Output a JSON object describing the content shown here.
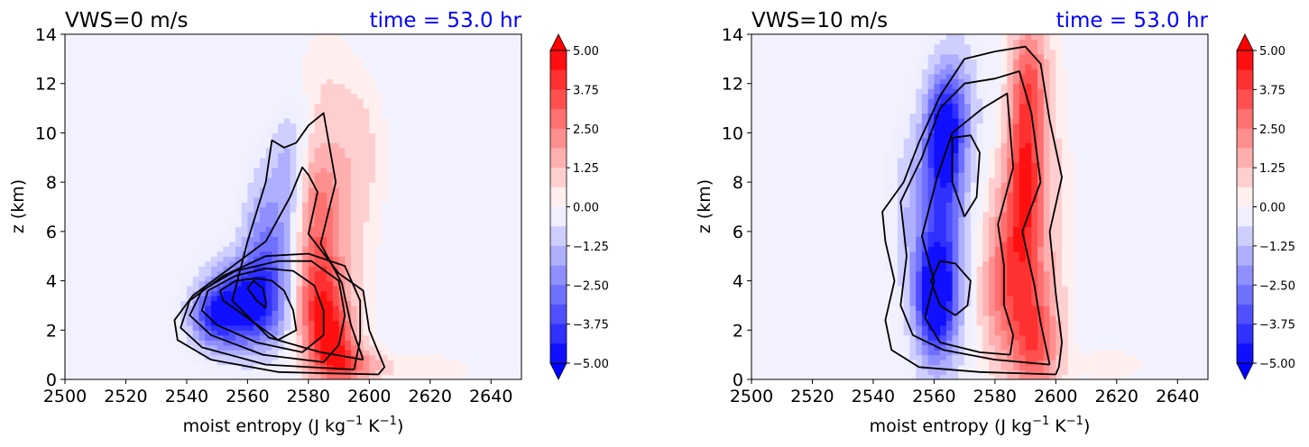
{
  "colors": {
    "positive": "#ff0000",
    "negative": "#0000ff",
    "background": "#f2f2ff",
    "time_title": "#0000ff",
    "contour": "#000000"
  },
  "colorbar": {
    "min": -5.0,
    "max": 5.0,
    "tick_labels": [
      "5.00",
      "3.75",
      "2.50",
      "1.25",
      "0.00",
      "−1.25",
      "−2.50",
      "−3.75",
      "−5.00"
    ],
    "tick_values": [
      5.0,
      3.75,
      2.5,
      1.25,
      0.0,
      -1.25,
      -2.5,
      -3.75,
      -5.0
    ]
  },
  "chart_data": [
    {
      "type": "heatmap",
      "title_left": "VWS=0 m/s",
      "title_right": "time = 53.0 hr",
      "xlabel_main": "moist entropy (J kg",
      "xlabel_sup1": "−1",
      "xlabel_mid": " K",
      "xlabel_sup2": "−1",
      "xlabel_end": ")",
      "ylabel": "z (km)",
      "xlim": [
        2500,
        2650
      ],
      "ylim": [
        0,
        14
      ],
      "x_ticks": [
        "2500",
        "2520",
        "2540",
        "2560",
        "2580",
        "2600",
        "2620",
        "2640"
      ],
      "y_ticks": [
        "0",
        "2",
        "4",
        "6",
        "8",
        "10",
        "12",
        "14"
      ],
      "blobs": [
        {
          "x": 2575,
          "y": 3.8,
          "sx": 9,
          "sy": 1.8,
          "v": -1.2
        },
        {
          "x": 2558,
          "y": 3.0,
          "sx": 8,
          "sy": 1.2,
          "v": -4.8
        },
        {
          "x": 2548,
          "y": 2.5,
          "sx": 5,
          "sy": 0.8,
          "v": -2.5
        },
        {
          "x": 2566,
          "y": 5.5,
          "sx": 5,
          "sy": 2.0,
          "v": -2.2
        },
        {
          "x": 2574,
          "y": 8.5,
          "sx": 4,
          "sy": 1.6,
          "v": -1.6
        },
        {
          "x": 2583,
          "y": 3.2,
          "sx": 6,
          "sy": 1.6,
          "v": 4.0
        },
        {
          "x": 2588,
          "y": 1.5,
          "sx": 5,
          "sy": 1.0,
          "v": 3.2
        },
        {
          "x": 2594,
          "y": 0.6,
          "sx": 7,
          "sy": 0.5,
          "v": 2.5
        },
        {
          "x": 2583,
          "y": 6.8,
          "sx": 5,
          "sy": 2.0,
          "v": 2.2
        },
        {
          "x": 2590,
          "y": 6.0,
          "sx": 8,
          "sy": 3.2,
          "v": 0.8
        },
        {
          "x": 2596,
          "y": 9.5,
          "sx": 6,
          "sy": 2.0,
          "v": 0.7
        },
        {
          "x": 2585,
          "y": 12.5,
          "sx": 6,
          "sy": 1.5,
          "v": 0.4
        },
        {
          "x": 2620,
          "y": 0.4,
          "sx": 10,
          "sy": 0.4,
          "v": 0.6
        }
      ],
      "contours": [
        [
          [
            2566,
            2.9
          ],
          [
            2563,
            3.2
          ],
          [
            2560,
            3.7
          ],
          [
            2562,
            4.0
          ],
          [
            2565,
            3.7
          ],
          [
            2566,
            3.2
          ],
          [
            2566,
            2.9
          ]
        ],
        [
          [
            2570,
            1.6
          ],
          [
            2560,
            2.5
          ],
          [
            2552,
            3.2
          ],
          [
            2551,
            3.6
          ],
          [
            2556,
            4.0
          ],
          [
            2563,
            4.1
          ],
          [
            2568,
            4.0
          ],
          [
            2572,
            3.6
          ],
          [
            2575,
            2.8
          ],
          [
            2576,
            2.0
          ],
          [
            2570,
            1.6
          ]
        ],
        [
          [
            2578,
            1.1
          ],
          [
            2563,
            1.5
          ],
          [
            2550,
            2.2
          ],
          [
            2545,
            2.8
          ],
          [
            2547,
            3.6
          ],
          [
            2556,
            4.2
          ],
          [
            2566,
            4.5
          ],
          [
            2575,
            4.4
          ],
          [
            2582,
            3.8
          ],
          [
            2585,
            2.8
          ],
          [
            2585,
            1.8
          ],
          [
            2578,
            1.1
          ]
        ],
        [
          [
            2585,
            0.7
          ],
          [
            2565,
            1.0
          ],
          [
            2548,
            1.8
          ],
          [
            2541,
            2.6
          ],
          [
            2545,
            3.6
          ],
          [
            2556,
            4.4
          ],
          [
            2570,
            4.8
          ],
          [
            2581,
            4.8
          ],
          [
            2590,
            4.0
          ],
          [
            2592,
            2.6
          ],
          [
            2590,
            1.4
          ],
          [
            2585,
            0.7
          ]
        ],
        [
          [
            2595,
            0.4
          ],
          [
            2566,
            0.6
          ],
          [
            2545,
            1.3
          ],
          [
            2538,
            2.1
          ],
          [
            2541,
            3.2
          ],
          [
            2552,
            4.2
          ],
          [
            2566,
            5.0
          ],
          [
            2580,
            5.1
          ],
          [
            2592,
            4.6
          ],
          [
            2597,
            3.2
          ],
          [
            2597,
            1.6
          ],
          [
            2595,
            0.4
          ]
        ],
        [
          [
            2603,
            0.2
          ],
          [
            2570,
            0.3
          ],
          [
            2548,
            0.8
          ],
          [
            2537,
            1.6
          ],
          [
            2536,
            2.4
          ],
          [
            2542,
            3.4
          ],
          [
            2553,
            4.4
          ],
          [
            2566,
            5.6
          ],
          [
            2574,
            7.4
          ],
          [
            2578,
            8.6
          ],
          [
            2580,
            8.3
          ],
          [
            2583,
            7.6
          ],
          [
            2580,
            5.9
          ],
          [
            2590,
            4.3
          ],
          [
            2598,
            3.6
          ],
          [
            2600,
            2.0
          ],
          [
            2605,
            0.5
          ],
          [
            2603,
            0.2
          ]
        ],
        [
          [
            2598,
            0.8
          ],
          [
            2584,
            1.1
          ],
          [
            2567,
            1.7
          ],
          [
            2555,
            3.2
          ],
          [
            2560,
            5.6
          ],
          [
            2566,
            8.0
          ],
          [
            2568,
            9.7
          ],
          [
            2572,
            9.4
          ],
          [
            2576,
            9.6
          ],
          [
            2580,
            10.3
          ],
          [
            2585,
            10.8
          ],
          [
            2589,
            8.0
          ],
          [
            2584,
            5.5
          ],
          [
            2591,
            3.9
          ],
          [
            2594,
            2.2
          ],
          [
            2598,
            0.8
          ]
        ]
      ]
    },
    {
      "type": "heatmap",
      "title_left": "VWS=10 m/s",
      "title_right": "time = 53.0 hr",
      "xlabel_main": "moist entropy (J kg",
      "xlabel_sup1": "−1",
      "xlabel_mid": " K",
      "xlabel_sup2": "−1",
      "xlabel_end": ")",
      "ylabel": "z (km)",
      "xlim": [
        2500,
        2650
      ],
      "ylim": [
        0,
        14
      ],
      "x_ticks": [
        "2500",
        "2520",
        "2540",
        "2560",
        "2580",
        "2600",
        "2620",
        "2640"
      ],
      "y_ticks": [
        "0",
        "2",
        "4",
        "6",
        "8",
        "10",
        "12",
        "14"
      ],
      "blobs": [
        {
          "x": 2562,
          "y": 4.5,
          "sx": 6,
          "sy": 3.2,
          "v": -2.2
        },
        {
          "x": 2560,
          "y": 3.2,
          "sx": 4,
          "sy": 1.4,
          "v": -4.2
        },
        {
          "x": 2563,
          "y": 10.0,
          "sx": 4,
          "sy": 1.6,
          "v": -4.0
        },
        {
          "x": 2568,
          "y": 11.0,
          "sx": 5,
          "sy": 2.0,
          "v": -1.6
        },
        {
          "x": 2556,
          "y": 7.0,
          "sx": 7,
          "sy": 2.5,
          "v": -1.2
        },
        {
          "x": 2565,
          "y": 6.0,
          "sx": 4,
          "sy": 2.8,
          "v": -0.9
        },
        {
          "x": 2590,
          "y": 9.0,
          "sx": 4,
          "sy": 3.0,
          "v": 3.8
        },
        {
          "x": 2586,
          "y": 5.0,
          "sx": 6,
          "sy": 2.5,
          "v": 2.5
        },
        {
          "x": 2593,
          "y": 1.5,
          "sx": 5,
          "sy": 1.6,
          "v": 2.8
        },
        {
          "x": 2582,
          "y": 3.0,
          "sx": 6,
          "sy": 2.0,
          "v": 1.2
        },
        {
          "x": 2598,
          "y": 6.0,
          "sx": 5,
          "sy": 5.0,
          "v": 0.8
        },
        {
          "x": 2592,
          "y": 12.5,
          "sx": 4,
          "sy": 1.5,
          "v": 1.5
        },
        {
          "x": 2618,
          "y": 0.6,
          "sx": 10,
          "sy": 0.6,
          "v": 0.4
        }
      ],
      "contours": [
        [
          [
            2567,
            2.6
          ],
          [
            2562,
            3.0
          ],
          [
            2559,
            4.0
          ],
          [
            2562,
            4.8
          ],
          [
            2567,
            4.7
          ],
          [
            2572,
            4.0
          ],
          [
            2571,
            3.0
          ],
          [
            2567,
            2.6
          ]
        ],
        [
          [
            2570,
            6.6
          ],
          [
            2566,
            8.0
          ],
          [
            2566,
            9.8
          ],
          [
            2572,
            9.9
          ],
          [
            2575,
            9.2
          ],
          [
            2574,
            7.4
          ],
          [
            2570,
            6.6
          ]
        ],
        [
          [
            2585,
            1.0
          ],
          [
            2575,
            1.1
          ],
          [
            2562,
            1.5
          ],
          [
            2557,
            2.5
          ],
          [
            2560,
            4.0
          ],
          [
            2556,
            5.8
          ],
          [
            2561,
            8.2
          ],
          [
            2566,
            10.0
          ],
          [
            2576,
            11.0
          ],
          [
            2584,
            11.6
          ],
          [
            2586,
            8.6
          ],
          [
            2581,
            6.3
          ],
          [
            2583,
            4.6
          ],
          [
            2583,
            3.0
          ],
          [
            2586,
            1.8
          ],
          [
            2585,
            1.0
          ]
        ],
        [
          [
            2598,
            0.6
          ],
          [
            2580,
            0.8
          ],
          [
            2563,
            1.2
          ],
          [
            2553,
            1.8
          ],
          [
            2549,
            3.0
          ],
          [
            2551,
            5.0
          ],
          [
            2549,
            7.2
          ],
          [
            2556,
            9.0
          ],
          [
            2562,
            11.0
          ],
          [
            2570,
            12.0
          ],
          [
            2580,
            12.2
          ],
          [
            2588,
            12.5
          ],
          [
            2592,
            10.8
          ],
          [
            2595,
            8.0
          ],
          [
            2589,
            6.0
          ],
          [
            2593,
            3.8
          ],
          [
            2595,
            2.3
          ],
          [
            2598,
            0.6
          ]
        ],
        [
          [
            2600,
            0.2
          ],
          [
            2575,
            0.3
          ],
          [
            2555,
            0.5
          ],
          [
            2546,
            1.2
          ],
          [
            2544,
            2.4
          ],
          [
            2547,
            4.0
          ],
          [
            2544,
            5.6
          ],
          [
            2543,
            6.8
          ],
          [
            2550,
            8.0
          ],
          [
            2555,
            9.6
          ],
          [
            2562,
            11.5
          ],
          [
            2570,
            13.0
          ],
          [
            2580,
            13.3
          ],
          [
            2590,
            13.5
          ],
          [
            2595,
            12.8
          ],
          [
            2598,
            10.5
          ],
          [
            2602,
            8.2
          ],
          [
            2598,
            6.0
          ],
          [
            2600,
            3.5
          ],
          [
            2602,
            1.5
          ],
          [
            2601,
            0.5
          ],
          [
            2600,
            0.2
          ]
        ]
      ]
    }
  ]
}
